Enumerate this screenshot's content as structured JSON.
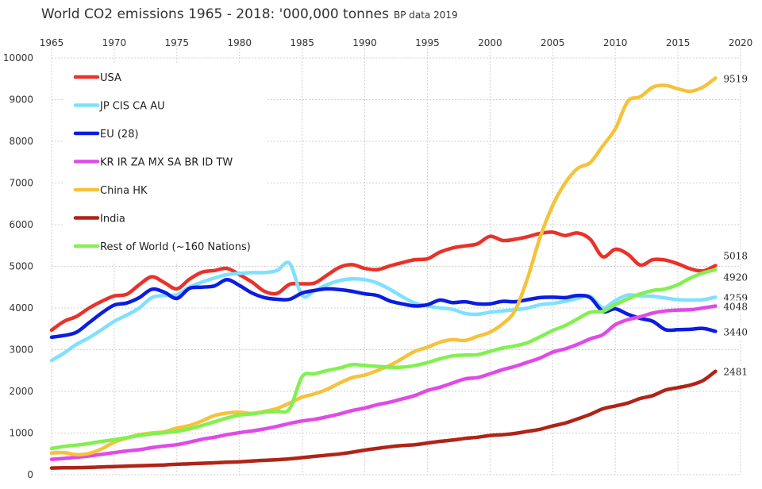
{
  "chart_data": {
    "type": "line",
    "title": "World CO2 emissions 1965 - 2018:  '000,000 tonnes",
    "subtitle": "BP data 2019",
    "xlim": [
      1965,
      2020
    ],
    "ylim": [
      0,
      10000
    ],
    "x_ticks": [
      1965,
      1970,
      1975,
      1980,
      1985,
      1990,
      1995,
      2000,
      2005,
      2010,
      2015,
      2020
    ],
    "y_ticks": [
      0,
      1000,
      2000,
      3000,
      4000,
      5000,
      6000,
      7000,
      8000,
      9000,
      10000
    ],
    "grid": true,
    "legend_position": "top-left",
    "x": [
      1965,
      1966,
      1967,
      1968,
      1969,
      1970,
      1971,
      1972,
      1973,
      1974,
      1975,
      1976,
      1977,
      1978,
      1979,
      1980,
      1981,
      1982,
      1983,
      1984,
      1985,
      1986,
      1987,
      1988,
      1989,
      1990,
      1991,
      1992,
      1993,
      1994,
      1995,
      1996,
      1997,
      1998,
      1999,
      2000,
      2001,
      2002,
      2003,
      2004,
      2005,
      2006,
      2007,
      2008,
      2009,
      2010,
      2011,
      2012,
      2013,
      2014,
      2015,
      2016,
      2017,
      2018
    ],
    "series": [
      {
        "name": "USA",
        "color": "#e8322a",
        "end_label": "5018",
        "values": [
          3470,
          3680,
          3800,
          4000,
          4160,
          4290,
          4330,
          4560,
          4750,
          4610,
          4460,
          4690,
          4860,
          4900,
          4950,
          4800,
          4620,
          4400,
          4350,
          4570,
          4580,
          4600,
          4790,
          4980,
          5040,
          4950,
          4920,
          5010,
          5090,
          5160,
          5180,
          5340,
          5440,
          5490,
          5540,
          5720,
          5620,
          5650,
          5710,
          5790,
          5820,
          5740,
          5800,
          5650,
          5230,
          5410,
          5290,
          5030,
          5160,
          5150,
          5060,
          4940,
          4890,
          5018
        ]
      },
      {
        "name": "JP CIS CA AU",
        "color": "#7fe0ff",
        "end_label": "4259",
        "values": [
          2740,
          2920,
          3130,
          3290,
          3480,
          3680,
          3830,
          4000,
          4250,
          4300,
          4320,
          4500,
          4620,
          4720,
          4800,
          4830,
          4850,
          4850,
          4900,
          5070,
          4300,
          4420,
          4560,
          4660,
          4700,
          4680,
          4600,
          4450,
          4270,
          4120,
          4050,
          4000,
          3970,
          3870,
          3850,
          3900,
          3930,
          3960,
          4000,
          4080,
          4110,
          4160,
          4230,
          4280,
          4000,
          4180,
          4310,
          4290,
          4280,
          4240,
          4200,
          4190,
          4200,
          4259
        ]
      },
      {
        "name": "EU (28)",
        "color": "#0b1de0",
        "end_label": "3440",
        "values": [
          3300,
          3340,
          3420,
          3650,
          3880,
          4070,
          4120,
          4250,
          4450,
          4380,
          4230,
          4470,
          4500,
          4530,
          4680,
          4540,
          4360,
          4250,
          4210,
          4210,
          4360,
          4420,
          4460,
          4440,
          4400,
          4340,
          4300,
          4170,
          4100,
          4050,
          4080,
          4190,
          4130,
          4150,
          4100,
          4100,
          4160,
          4150,
          4200,
          4250,
          4260,
          4250,
          4300,
          4250,
          3920,
          3980,
          3850,
          3750,
          3680,
          3480,
          3480,
          3490,
          3510,
          3440
        ]
      },
      {
        "name": "KR IR ZA MX SA BR ID TW",
        "color": "#e04ae8",
        "end_label": "4048",
        "values": [
          370,
          390,
          420,
          450,
          490,
          530,
          570,
          600,
          650,
          690,
          720,
          780,
          850,
          900,
          960,
          1010,
          1050,
          1100,
          1160,
          1230,
          1290,
          1330,
          1390,
          1460,
          1540,
          1600,
          1680,
          1740,
          1820,
          1900,
          2020,
          2100,
          2200,
          2300,
          2330,
          2420,
          2520,
          2600,
          2700,
          2800,
          2940,
          3020,
          3130,
          3260,
          3360,
          3600,
          3720,
          3790,
          3880,
          3930,
          3950,
          3960,
          4000,
          4048
        ]
      },
      {
        "name": "China HK",
        "color": "#f6c23a",
        "end_label": "9519",
        "values": [
          520,
          530,
          480,
          510,
          620,
          780,
          880,
          960,
          1000,
          1030,
          1120,
          1180,
          1290,
          1420,
          1480,
          1500,
          1470,
          1520,
          1590,
          1720,
          1860,
          1940,
          2050,
          2200,
          2330,
          2390,
          2500,
          2620,
          2790,
          2960,
          3060,
          3180,
          3240,
          3220,
          3320,
          3420,
          3620,
          3940,
          4720,
          5700,
          6460,
          7000,
          7350,
          7490,
          7890,
          8300,
          8960,
          9070,
          9300,
          9340,
          9260,
          9200,
          9300,
          9519
        ]
      },
      {
        "name": "India",
        "color": "#b02418",
        "end_label": "2481",
        "values": [
          160,
          165,
          170,
          175,
          185,
          195,
          205,
          215,
          225,
          235,
          250,
          262,
          275,
          285,
          300,
          310,
          330,
          345,
          360,
          380,
          410,
          440,
          470,
          500,
          540,
          590,
          630,
          670,
          700,
          720,
          760,
          800,
          830,
          870,
          900,
          940,
          960,
          990,
          1040,
          1090,
          1170,
          1240,
          1340,
          1450,
          1580,
          1650,
          1720,
          1830,
          1900,
          2030,
          2090,
          2150,
          2260,
          2481
        ]
      },
      {
        "name": "Rest of World (~160 Nations)",
        "color": "#82f050",
        "end_label": "4920",
        "values": [
          630,
          680,
          710,
          750,
          800,
          840,
          890,
          940,
          980,
          1010,
          1040,
          1100,
          1180,
          1270,
          1360,
          1430,
          1460,
          1500,
          1520,
          1580,
          2350,
          2420,
          2500,
          2560,
          2640,
          2620,
          2600,
          2580,
          2580,
          2620,
          2690,
          2780,
          2850,
          2870,
          2880,
          2960,
          3040,
          3090,
          3170,
          3310,
          3460,
          3580,
          3740,
          3900,
          3920,
          4080,
          4220,
          4340,
          4420,
          4460,
          4560,
          4720,
          4840,
          4920
        ]
      }
    ]
  }
}
